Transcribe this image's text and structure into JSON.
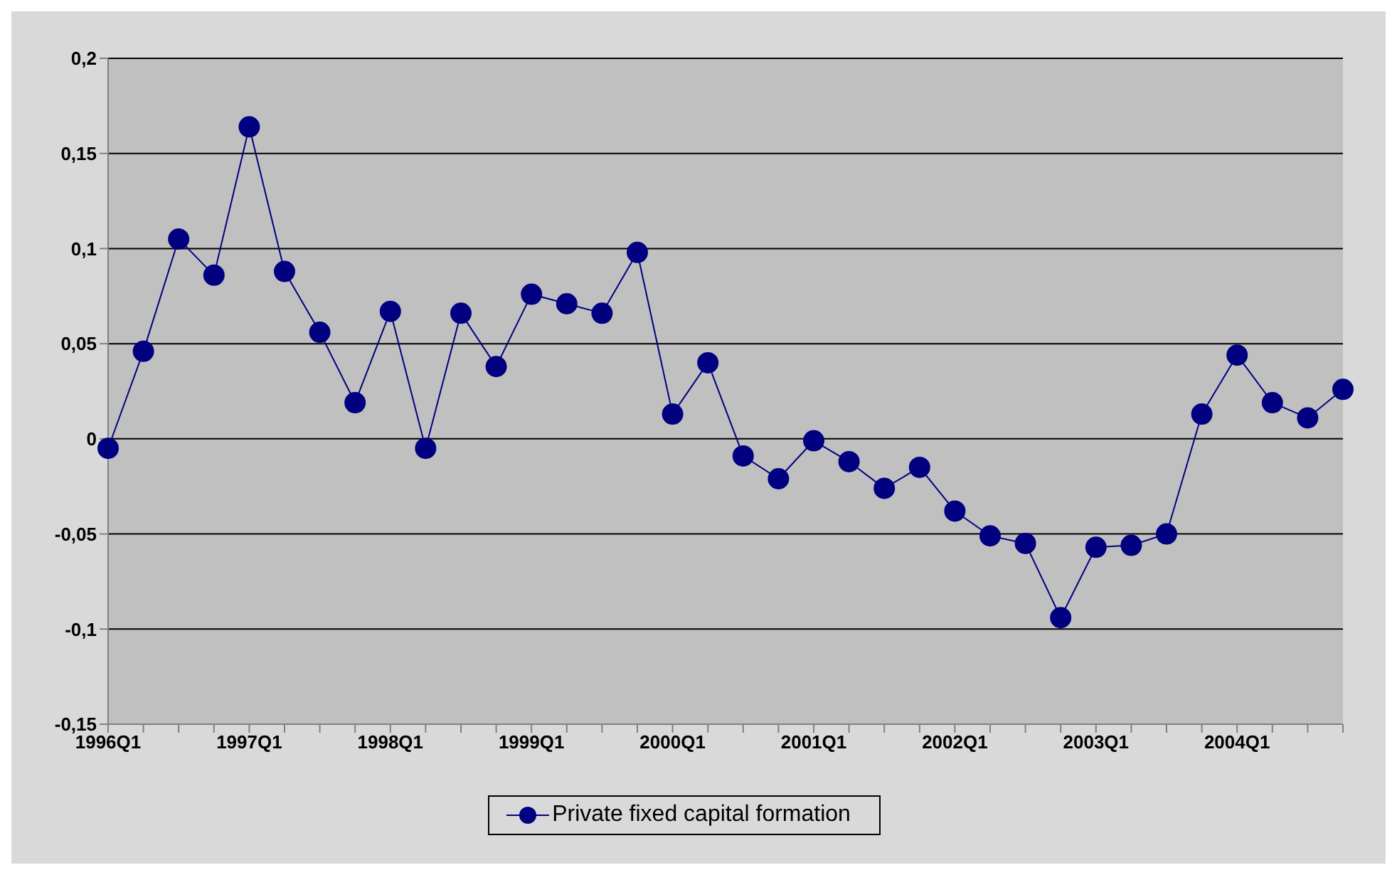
{
  "chart_data": {
    "type": "line",
    "categories": [
      "1996Q1",
      null,
      null,
      null,
      "1997Q1",
      null,
      null,
      null,
      "1998Q1",
      null,
      null,
      null,
      "1999Q1",
      null,
      null,
      null,
      "2000Q1",
      null,
      null,
      null,
      "2001Q1",
      null,
      null,
      null,
      "2002Q1",
      null,
      null,
      null,
      "2003Q1",
      null,
      null,
      null,
      "2004Q1",
      null,
      null,
      null
    ],
    "series": [
      {
        "name": "Private fixed capital formation",
        "color": "#000080",
        "values": [
          -0.005,
          0.046,
          0.105,
          0.086,
          0.164,
          0.088,
          0.056,
          0.019,
          0.067,
          -0.005,
          0.066,
          0.038,
          0.076,
          0.071,
          0.066,
          0.098,
          0.013,
          0.04,
          -0.009,
          -0.021,
          -0.001,
          -0.012,
          -0.026,
          -0.015,
          -0.038,
          -0.051,
          -0.055,
          -0.094,
          -0.057,
          -0.056,
          -0.05,
          0.013,
          0.044,
          0.019,
          0.011,
          0.026
        ]
      }
    ],
    "ylim": [
      -0.15,
      0.2
    ],
    "yticks": [
      {
        "value": -0.15,
        "label": "-0,15"
      },
      {
        "value": -0.1,
        "label": "-0,1"
      },
      {
        "value": -0.05,
        "label": "-0,05"
      },
      {
        "value": 0,
        "label": "0"
      },
      {
        "value": 0.05,
        "label": "0,05"
      },
      {
        "value": 0.1,
        "label": "0,1"
      },
      {
        "value": 0.15,
        "label": "0,15"
      },
      {
        "value": 0.2,
        "label": "0,2"
      }
    ],
    "grid": "y",
    "legend": "bottom",
    "marker": "circle",
    "line_style": "solid"
  }
}
